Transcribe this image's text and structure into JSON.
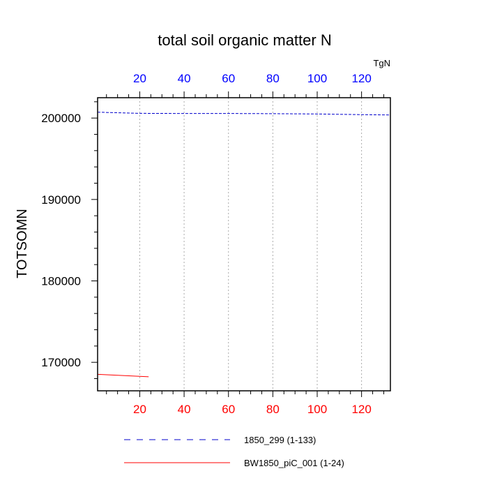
{
  "chart_data": {
    "type": "line",
    "title": "total soil organic matter N",
    "units": "TgN",
    "ylabel": "TOTSOMN",
    "xlim": [
      1,
      133
    ],
    "ylim": [
      166500,
      202500
    ],
    "x_ticks": [
      20,
      40,
      60,
      80,
      100,
      120
    ],
    "y_ticks": [
      170000,
      180000,
      190000,
      200000
    ],
    "bottom_axis_color": "#ff0000",
    "top_axis_color": "#0000ff",
    "grid": "vertical dotted",
    "legend_position": "bottom",
    "series": [
      {
        "name": "1850_299 (1-133)",
        "color": "#0000cc",
        "style": "dashed",
        "x": [
          1,
          20,
          40,
          60,
          80,
          100,
          120,
          133
        ],
        "y": [
          200720,
          200580,
          200560,
          200560,
          200540,
          200500,
          200420,
          200380
        ]
      },
      {
        "name": "BW1850_piC_001 (1-24)",
        "color": "#ff0000",
        "style": "solid",
        "x": [
          1,
          24
        ],
        "y": [
          168520,
          168220
        ]
      }
    ]
  }
}
